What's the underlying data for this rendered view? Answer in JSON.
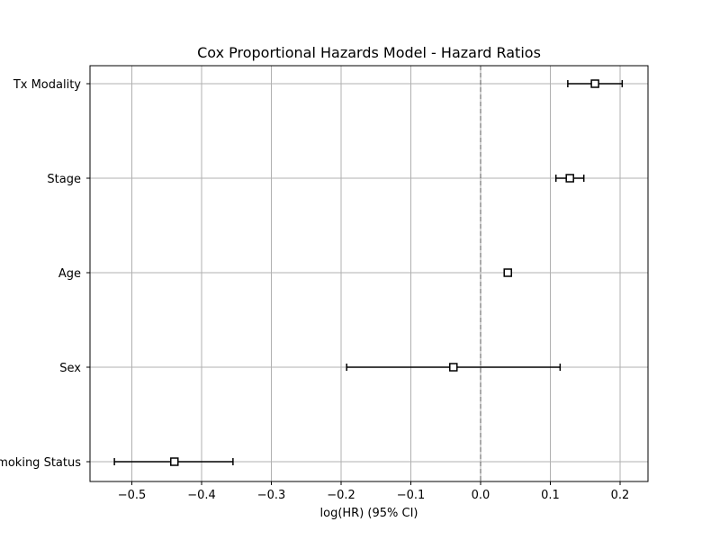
{
  "chart_data": {
    "type": "scatter",
    "subtype": "forest",
    "title": "Cox Proportional Hazards Model - Hazard Ratios",
    "xlabel": "log(HR) (95% CI)",
    "ylabel": "",
    "xlim": [
      -0.56,
      0.24
    ],
    "xticks": [
      -0.5,
      -0.4,
      -0.3,
      -0.2,
      -0.1,
      0.0,
      0.1,
      0.2
    ],
    "xtick_labels": [
      "−0.5",
      "−0.4",
      "−0.3",
      "−0.2",
      "−0.1",
      "0.0",
      "0.1",
      "0.2"
    ],
    "reference_line": 0.0,
    "grid": true,
    "categories": [
      "Tx Modality",
      "Stage",
      "Age",
      "Sex",
      "Smoking Status"
    ],
    "points": [
      {
        "label": "Tx Modality",
        "coef": 0.164,
        "ci_lower": 0.125,
        "ci_upper": 0.203
      },
      {
        "label": "Stage",
        "coef": 0.128,
        "ci_lower": 0.108,
        "ci_upper": 0.148
      },
      {
        "label": "Age",
        "coef": 0.039,
        "ci_lower": 0.035,
        "ci_upper": 0.043
      },
      {
        "label": "Sex",
        "coef": -0.039,
        "ci_lower": -0.192,
        "ci_upper": 0.114
      },
      {
        "label": "Smoking Status",
        "coef": -0.439,
        "ci_lower": -0.525,
        "ci_upper": -0.355
      }
    ],
    "colors": {
      "marker_edge": "#000000",
      "marker_face": "#ffffff",
      "grid": "#b0b0b0",
      "reference": "#555555"
    }
  }
}
